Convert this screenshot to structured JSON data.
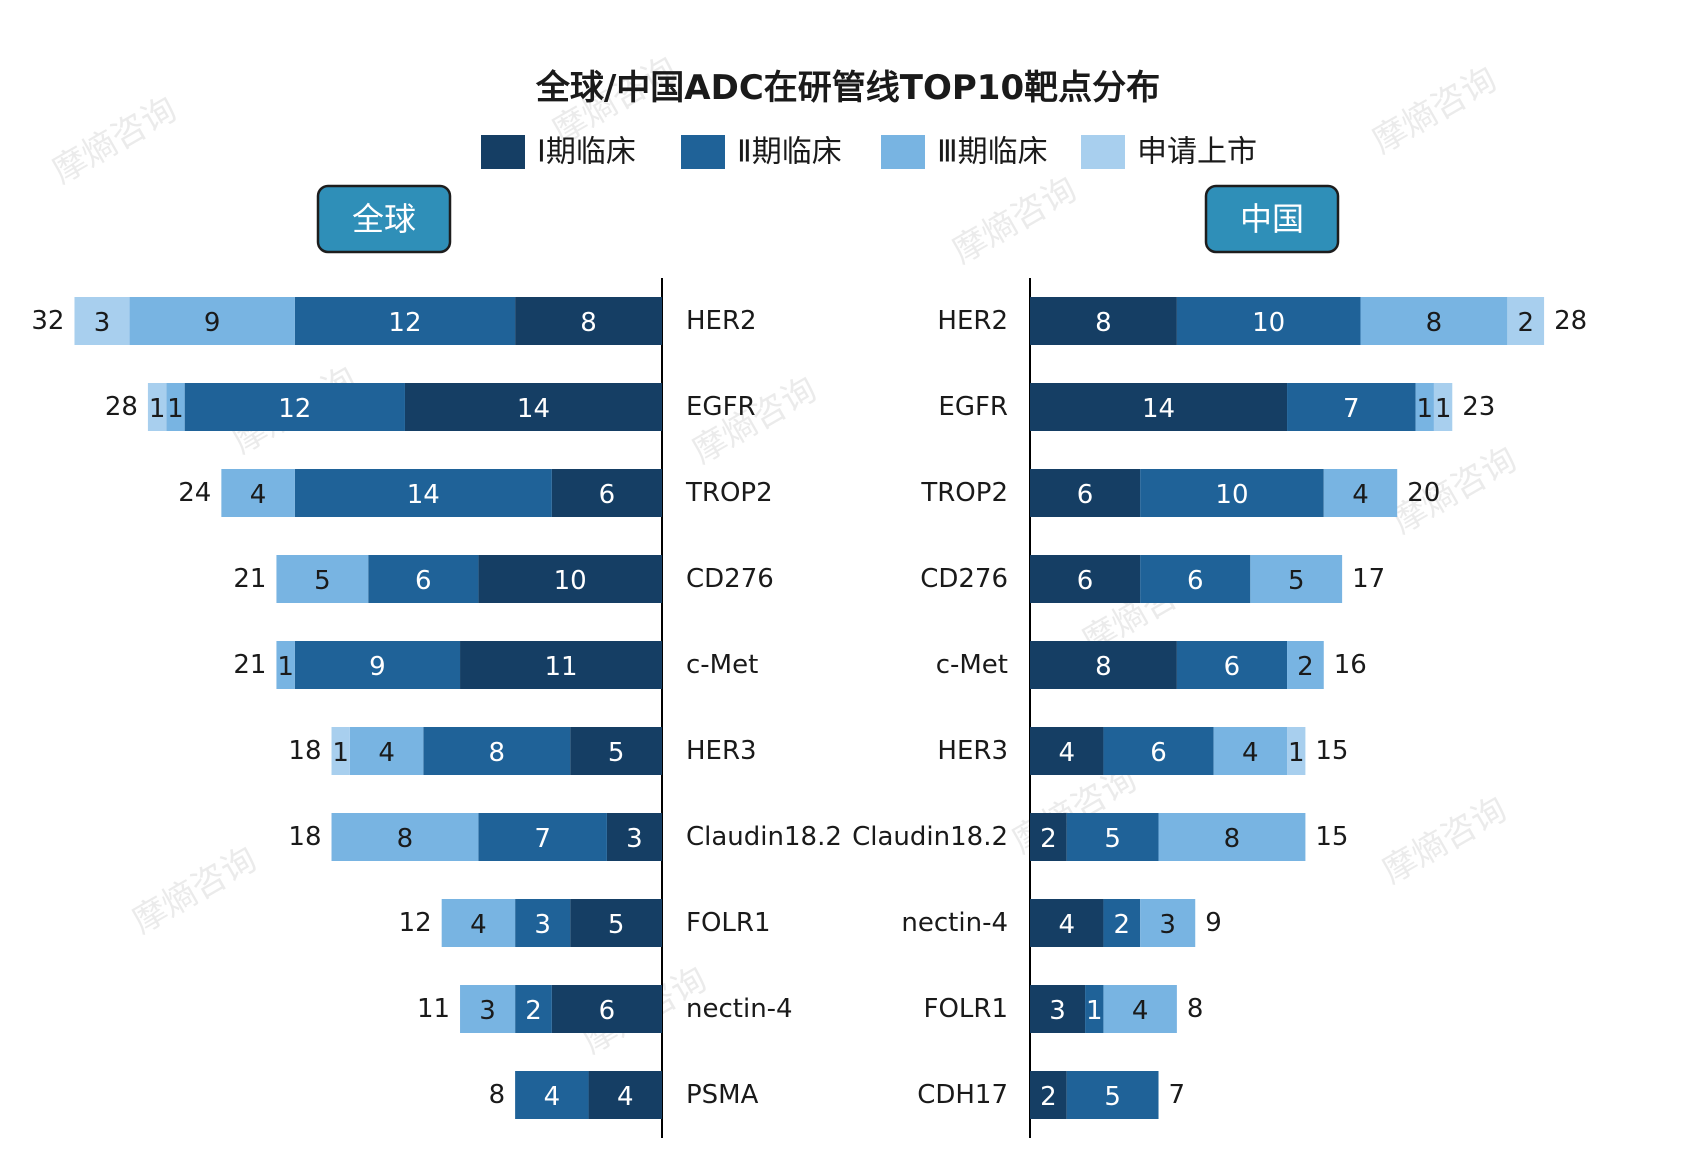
{
  "chart_data": [
    {
      "type": "bar",
      "orientation": "horizontal",
      "stacked": true,
      "panel": "全球",
      "title": "全球/中国ADC在研管线TOP10靶点分布",
      "categories": [
        "HER2",
        "EGFR",
        "TROP2",
        "CD276",
        "c-Met",
        "HER3",
        "Claudin18.2",
        "FOLR1",
        "nectin-4",
        "PSMA"
      ],
      "series": [
        {
          "name": "Ⅰ期临床",
          "values": [
            8,
            14,
            6,
            10,
            11,
            5,
            3,
            5,
            6,
            4
          ]
        },
        {
          "name": "Ⅱ期临床",
          "values": [
            12,
            12,
            14,
            6,
            9,
            8,
            7,
            3,
            2,
            4
          ]
        },
        {
          "name": "Ⅲ期临床",
          "values": [
            9,
            1,
            4,
            5,
            1,
            4,
            8,
            4,
            3,
            0
          ]
        },
        {
          "name": "申请上市",
          "values": [
            3,
            1,
            0,
            0,
            0,
            1,
            0,
            0,
            0,
            0
          ]
        }
      ],
      "totals": [
        32,
        28,
        24,
        21,
        21,
        18,
        18,
        12,
        11,
        8
      ],
      "xlabel": "",
      "ylabel": ""
    },
    {
      "type": "bar",
      "orientation": "horizontal",
      "stacked": true,
      "panel": "中国",
      "categories": [
        "HER2",
        "EGFR",
        "TROP2",
        "CD276",
        "c-Met",
        "HER3",
        "Claudin18.2",
        "nectin-4",
        "FOLR1",
        "CDH17"
      ],
      "series": [
        {
          "name": "Ⅰ期临床",
          "values": [
            8,
            14,
            6,
            6,
            8,
            4,
            2,
            4,
            3,
            2
          ]
        },
        {
          "name": "Ⅱ期临床",
          "values": [
            10,
            7,
            10,
            6,
            6,
            6,
            5,
            2,
            1,
            5
          ]
        },
        {
          "name": "Ⅲ期临床",
          "values": [
            8,
            1,
            4,
            5,
            2,
            4,
            8,
            3,
            4,
            0
          ]
        },
        {
          "name": "申请上市",
          "values": [
            2,
            1,
            0,
            0,
            0,
            1,
            0,
            0,
            0,
            0
          ]
        }
      ],
      "totals": [
        28,
        23,
        20,
        17,
        16,
        15,
        15,
        9,
        8,
        7
      ],
      "xlabel": "",
      "ylabel": ""
    }
  ],
  "legend": {
    "position": "top",
    "items": [
      "Ⅰ期临床",
      "Ⅱ期临床",
      "Ⅲ期临床",
      "申请上市"
    ]
  },
  "panels": {
    "left_label": "全球",
    "right_label": "中国"
  },
  "watermark": "摩熵咨询",
  "colors": {
    "phase1": "#153e64",
    "phase2": "#1f6298",
    "phase3": "#78b4e2",
    "filing": "#a8cfee",
    "panel_label_bg": "#2f8fb8",
    "panel_label_border": "#1d1d1d",
    "axis": "#000000",
    "text": "#1a1a1a",
    "watermark": "#d8d8d8"
  }
}
